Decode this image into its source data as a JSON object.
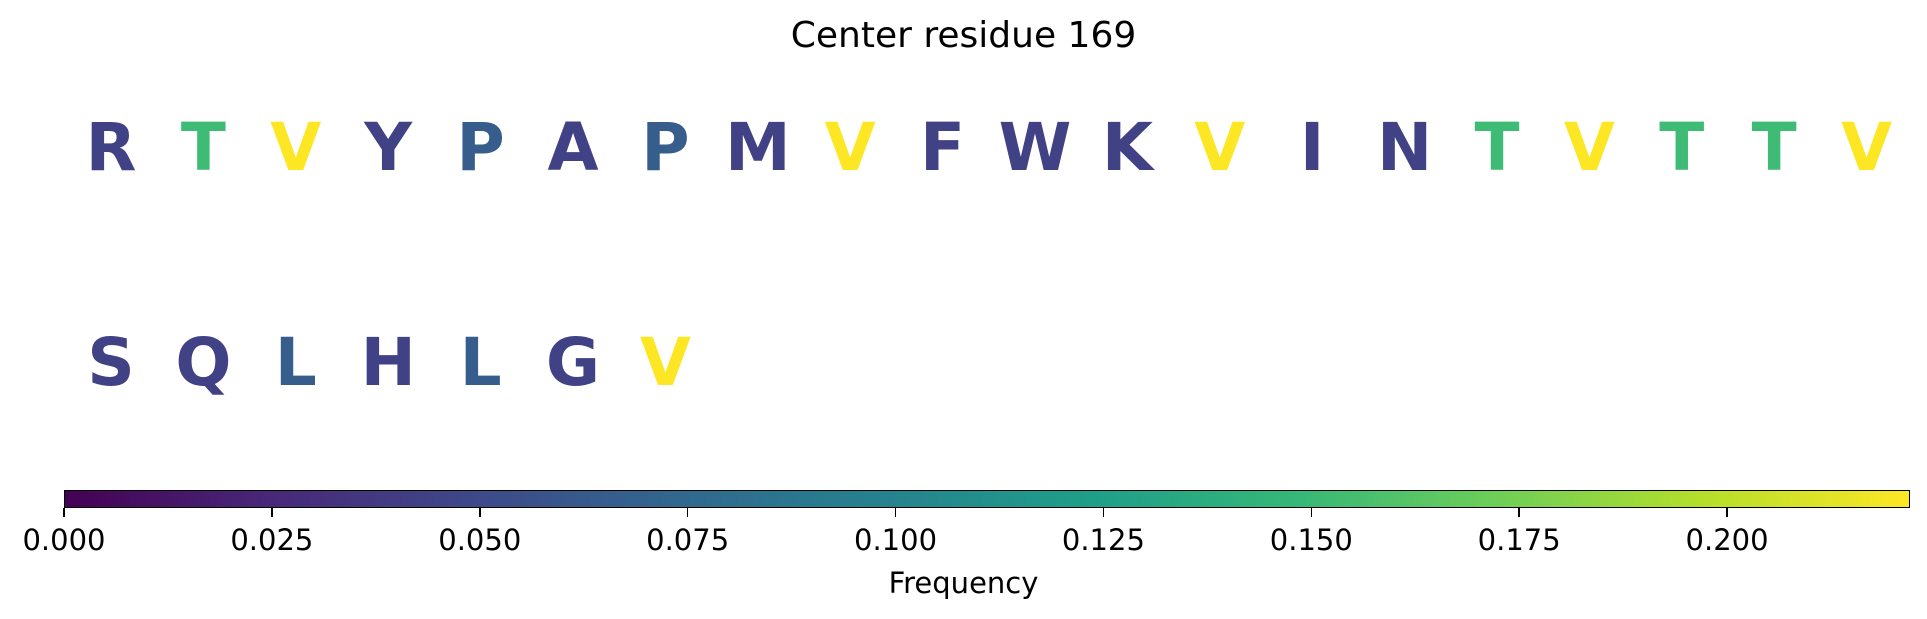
{
  "chart_data": {
    "type": "sequence-logo",
    "title": "Center residue 169",
    "residues": [
      {
        "letter": "R",
        "frequency": 0.043
      },
      {
        "letter": "T",
        "frequency": 0.152
      },
      {
        "letter": "V",
        "frequency": 0.222
      },
      {
        "letter": "Y",
        "frequency": 0.043
      },
      {
        "letter": "P",
        "frequency": 0.065
      },
      {
        "letter": "A",
        "frequency": 0.043
      },
      {
        "letter": "P",
        "frequency": 0.065
      },
      {
        "letter": "M",
        "frequency": 0.043
      },
      {
        "letter": "V",
        "frequency": 0.222
      },
      {
        "letter": "F",
        "frequency": 0.043
      },
      {
        "letter": "W",
        "frequency": 0.043
      },
      {
        "letter": "K",
        "frequency": 0.043
      },
      {
        "letter": "V",
        "frequency": 0.222
      },
      {
        "letter": "I",
        "frequency": 0.043
      },
      {
        "letter": "N",
        "frequency": 0.043
      },
      {
        "letter": "T",
        "frequency": 0.152
      },
      {
        "letter": "V",
        "frequency": 0.222
      },
      {
        "letter": "T",
        "frequency": 0.152
      },
      {
        "letter": "T",
        "frequency": 0.152
      },
      {
        "letter": "V",
        "frequency": 0.222
      },
      {
        "letter": "S",
        "frequency": 0.043
      },
      {
        "letter": "Q",
        "frequency": 0.043
      },
      {
        "letter": "L",
        "frequency": 0.065
      },
      {
        "letter": "H",
        "frequency": 0.043
      },
      {
        "letter": "L",
        "frequency": 0.065
      },
      {
        "letter": "G",
        "frequency": 0.043
      },
      {
        "letter": "V",
        "frequency": 0.222
      }
    ],
    "colorbar": {
      "label": "Frequency",
      "colormap": "viridis",
      "range": [
        0,
        0.222
      ],
      "ticks": [
        0.0,
        0.025,
        0.05,
        0.075,
        0.1,
        0.125,
        0.15,
        0.175,
        0.2
      ],
      "tick_labels": [
        "0.000",
        "0.025",
        "0.050",
        "0.075",
        "0.100",
        "0.125",
        "0.150",
        "0.175",
        "0.200"
      ]
    }
  }
}
